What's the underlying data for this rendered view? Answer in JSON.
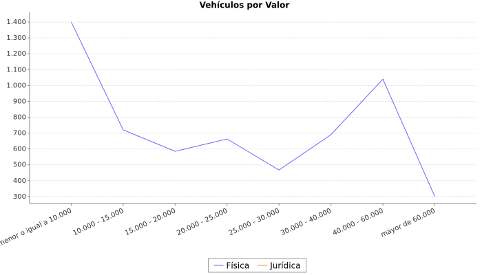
{
  "chart_data": {
    "type": "line",
    "title": "Vehículos por Valor",
    "categories": [
      "menor o igual a 10.000",
      "10.000 - 15.000",
      "15.000 - 20.000",
      "20.000 - 25.000",
      "25.000 - 30.000",
      "30.000 - 40.000",
      "40.000 - 60.000",
      "mayor de 60.000"
    ],
    "series": [
      {
        "name": "Física",
        "color": "#6666ff",
        "values": [
          1400,
          720,
          585,
          663,
          467,
          690,
          1040,
          300
        ]
      },
      {
        "name": "Jurídica",
        "color": "#ff9900",
        "values": [
          null,
          null,
          null,
          null,
          null,
          null,
          null,
          null
        ]
      }
    ],
    "ylim": [
      256,
      1461
    ],
    "yticks": [
      300,
      400,
      500,
      600,
      700,
      800,
      900,
      {
        "value": 1000,
        "label": "1.000"
      },
      {
        "value": 1100,
        "label": "1.100"
      },
      {
        "value": 1200,
        "label": "1.200"
      },
      {
        "value": 1300,
        "label": "1.300"
      },
      {
        "value": 1400,
        "label": "1.400"
      }
    ],
    "grid": true,
    "legend": "bottom"
  }
}
